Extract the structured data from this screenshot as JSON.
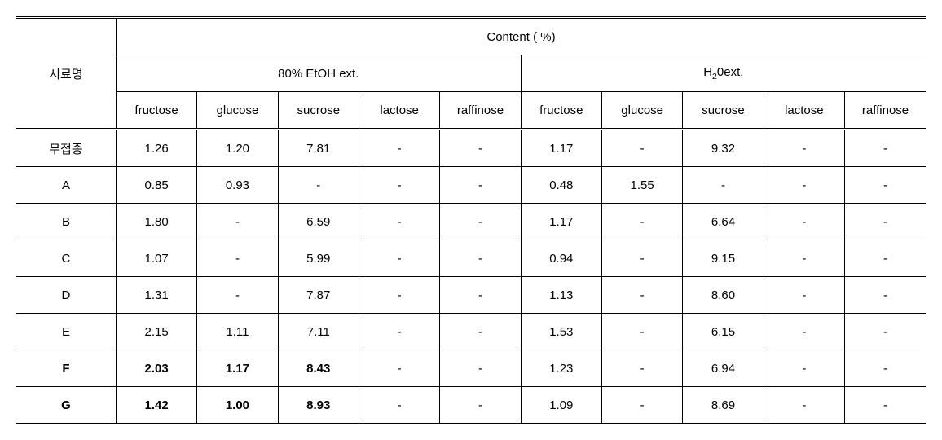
{
  "header": {
    "rowLabel": "시료명",
    "content": "Content  ( %)",
    "group1": "80% EtOH  ext.",
    "group2_pre": "H",
    "group2_sub": "2",
    "group2_post": "0ext.",
    "cols": [
      "fructose",
      "glucose",
      "sucrose",
      "lactose",
      "raffinose",
      "fructose",
      "glucose",
      "sucrose",
      "lactose",
      "raffinose"
    ]
  },
  "rows": [
    {
      "label": "무접종",
      "bold": false,
      "boldCols": [],
      "cells": [
        "1.26",
        "1.20",
        "7.81",
        "-",
        "-",
        "1.17",
        "-",
        "9.32",
        "-",
        "-"
      ]
    },
    {
      "label": "A",
      "bold": false,
      "boldCols": [],
      "cells": [
        "0.85",
        "0.93",
        "-",
        "-",
        "-",
        "0.48",
        "1.55",
        "-",
        "-",
        "-"
      ]
    },
    {
      "label": "B",
      "bold": false,
      "boldCols": [],
      "cells": [
        "1.80",
        "-",
        "6.59",
        "-",
        "-",
        "1.17",
        "-",
        "6.64",
        "-",
        "-"
      ]
    },
    {
      "label": "C",
      "bold": false,
      "boldCols": [],
      "cells": [
        "1.07",
        "-",
        "5.99",
        "-",
        "-",
        "0.94",
        "-",
        "9.15",
        "-",
        "-"
      ]
    },
    {
      "label": "D",
      "bold": false,
      "boldCols": [],
      "cells": [
        "1.31",
        "-",
        "7.87",
        "-",
        "-",
        "1.13",
        "-",
        "8.60",
        "-",
        "-"
      ]
    },
    {
      "label": "E",
      "bold": false,
      "boldCols": [],
      "cells": [
        "2.15",
        "1.11",
        "7.11",
        "-",
        "-",
        "1.53",
        "-",
        "6.15",
        "-",
        "-"
      ]
    },
    {
      "label": "F",
      "bold": true,
      "boldCols": [
        0,
        1,
        2
      ],
      "cells": [
        "2.03",
        "1.17",
        "8.43",
        "-",
        "-",
        "1.23",
        "-",
        "6.94",
        "-",
        "-"
      ]
    },
    {
      "label": "G",
      "bold": true,
      "boldCols": [
        0,
        1,
        2
      ],
      "cells": [
        "1.42",
        "1.00",
        "8.93",
        "-",
        "-",
        "1.09",
        "-",
        "8.69",
        "-",
        "-"
      ]
    }
  ],
  "style": {
    "fontSize": 15,
    "borderColor": "#000000",
    "background": "#ffffff"
  }
}
